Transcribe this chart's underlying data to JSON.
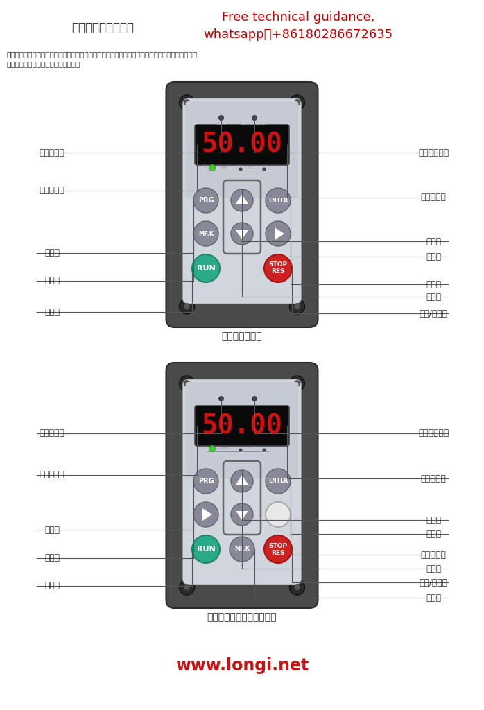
{
  "title_cn": "操作与显示界面介绍",
  "title_en_line1": "Free technical guidance,",
  "title_en_line2": "whatsapp：+86180286672635",
  "desc_line1": "用操作面板，可对变频器进行功能参数修改、变频器工作状态监控和变频器运行控制（起动、停止）",
  "desc_line2": "等操作，其外型及功能区如下图所示：",
  "panel1_caption": "操作面板示意图",
  "panel2_caption": "带电位器的外引键盘示意图",
  "website": "www.longi.net",
  "bg_color": "#ffffff",
  "panel_dark": "#4a4a4a",
  "panel_light": "#b8bdc8",
  "panel_lighter": "#d0d5de",
  "panel_wave": "#c5cad4",
  "display_bg": "#0a0a0a",
  "display_red": "#cc1111",
  "btn_gray": "#888898",
  "btn_teal": "#2aaa8a",
  "btn_red": "#cc2222",
  "line_color": "#555555",
  "red_color": "#cc0000",
  "website_color": "#cc1111"
}
